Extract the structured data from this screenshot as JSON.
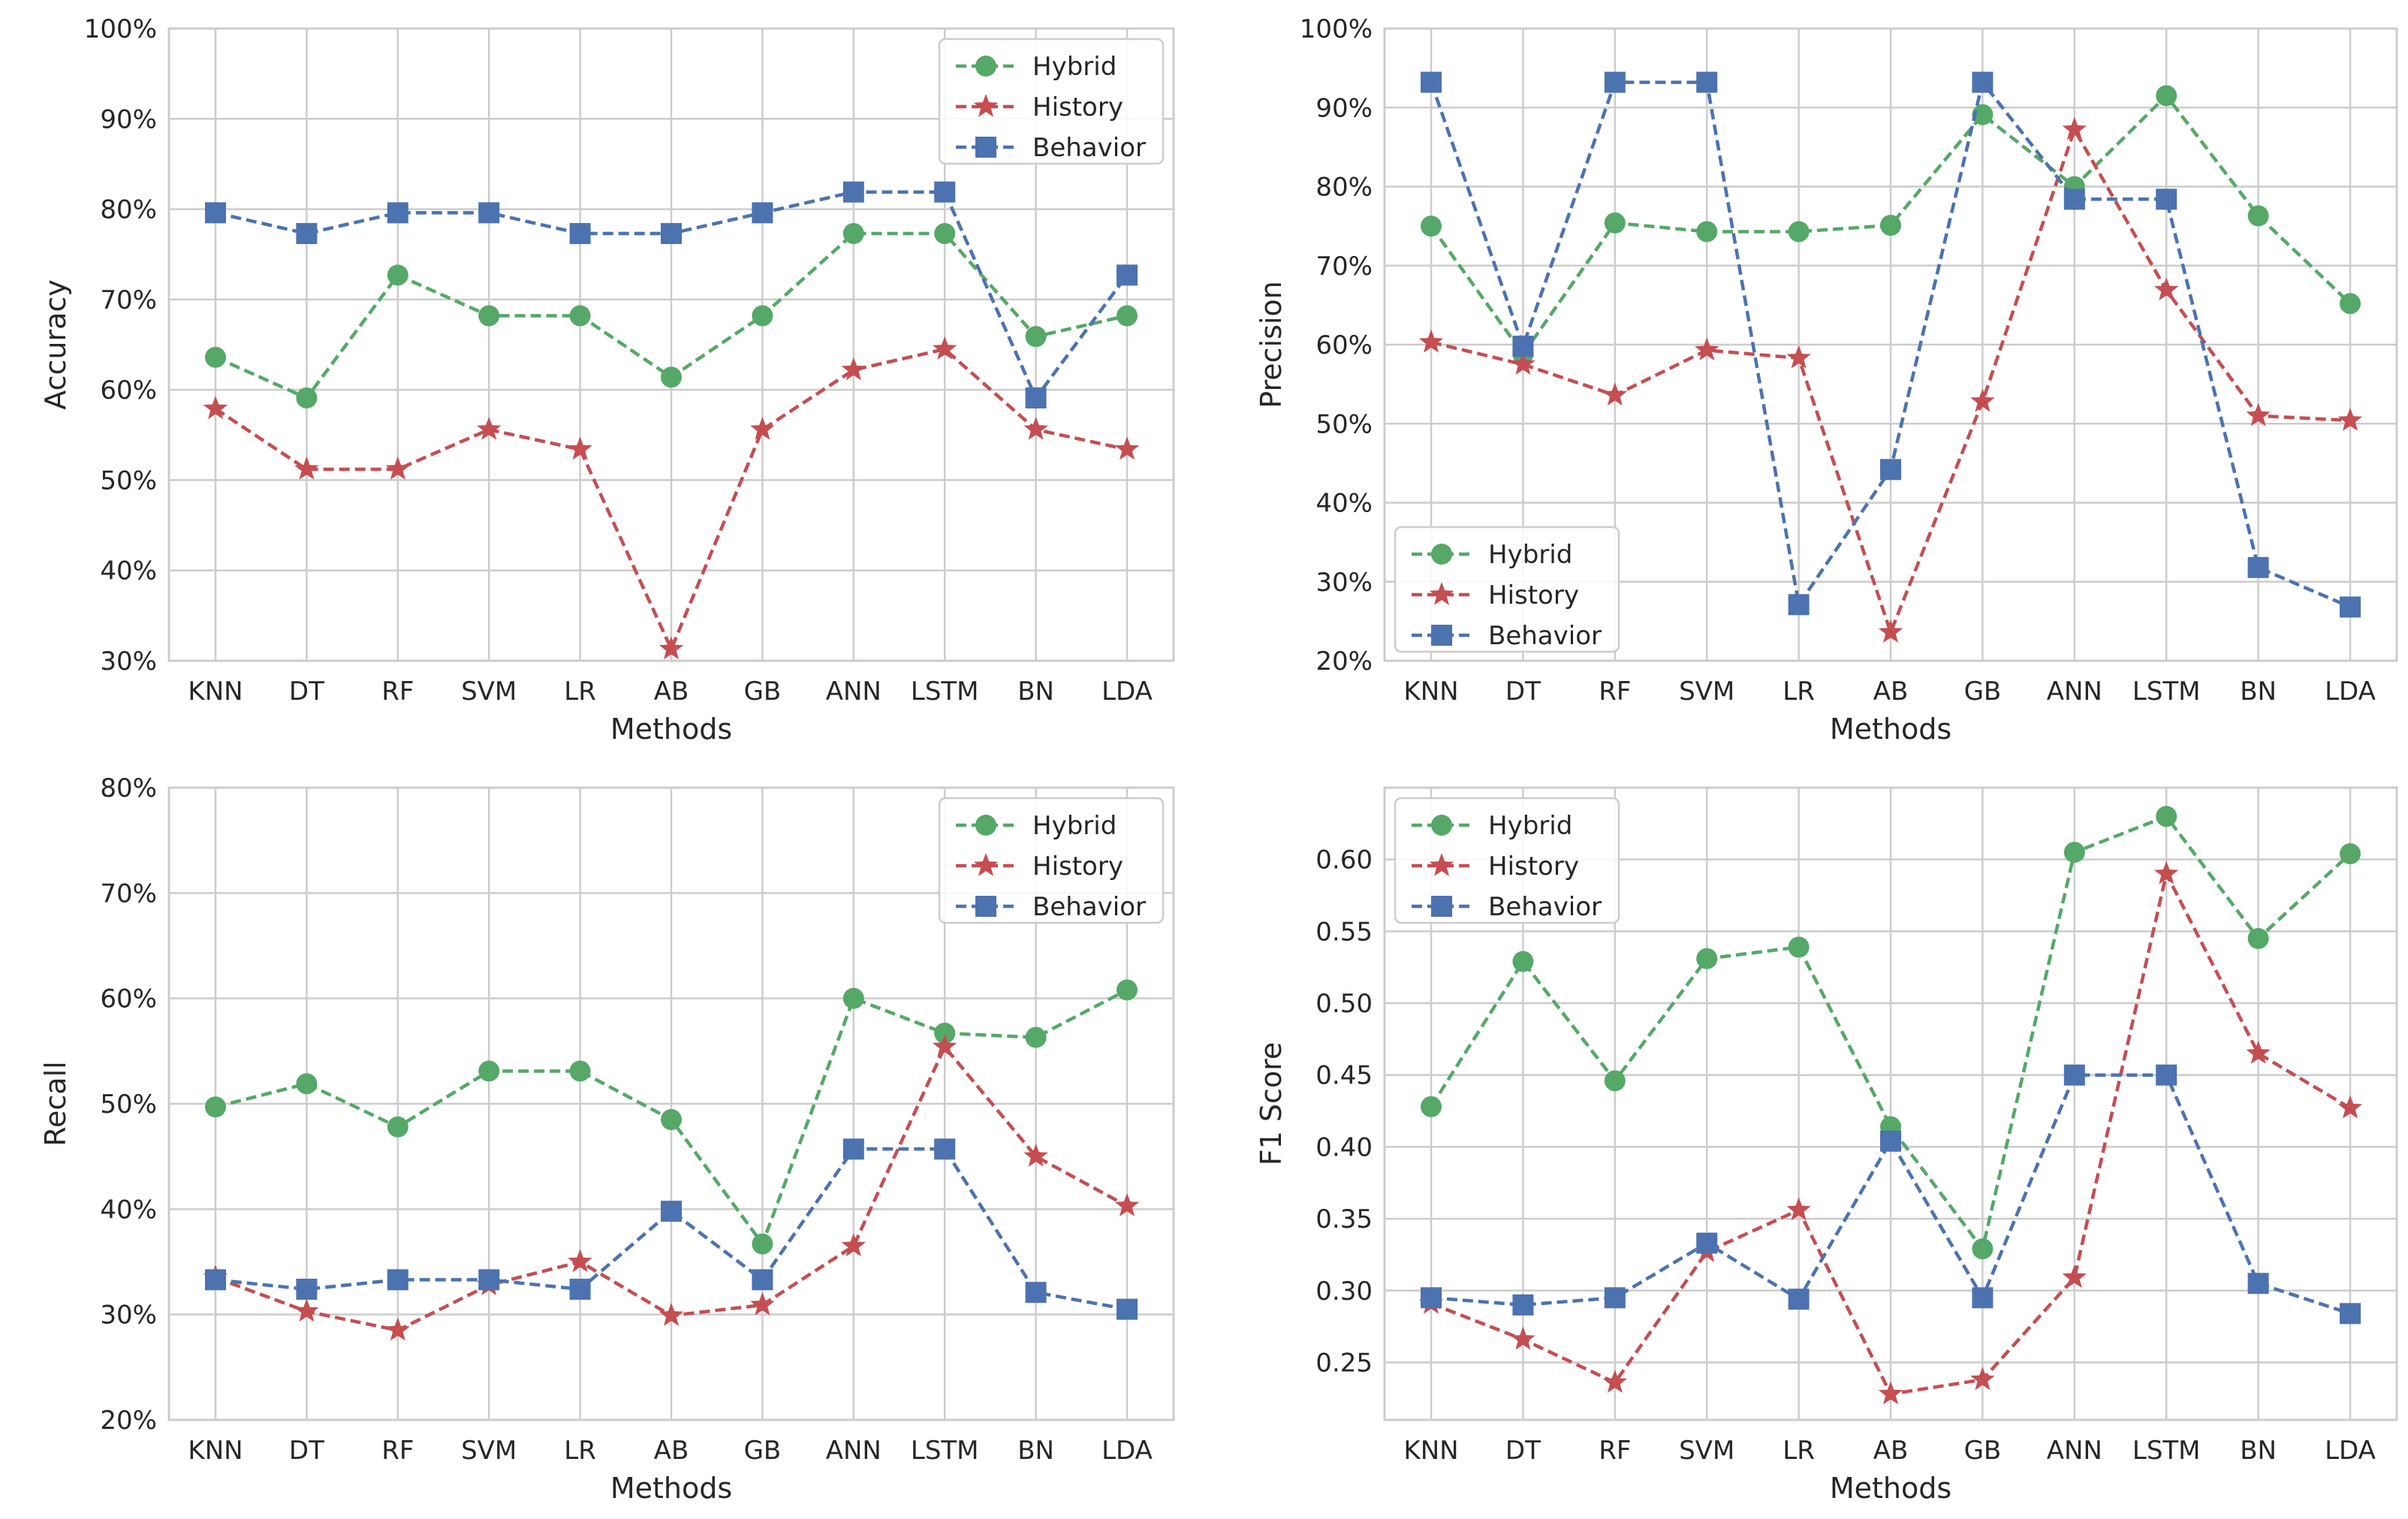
{
  "colors": {
    "Hybrid": "#55a868",
    "History": "#c44e52",
    "Behavior": "#4c72b0",
    "grid": "#cccccc",
    "frame": "#cccccc"
  },
  "chart_data": [
    {
      "type": "line",
      "title": "",
      "xlabel": "Methods",
      "ylabel": "Accuracy",
      "categories": [
        "KNN",
        "DT",
        "RF",
        "SVM",
        "LR",
        "AB",
        "GB",
        "ANN",
        "LSTM",
        "BN",
        "LDA"
      ],
      "ylim": [
        30,
        100
      ],
      "yticks": [
        30,
        40,
        50,
        60,
        70,
        80,
        90,
        100
      ],
      "ytick_labels": [
        "30%",
        "40%",
        "50%",
        "60%",
        "70%",
        "80%",
        "90%",
        "100%"
      ],
      "grid": true,
      "legend": "top-right",
      "series": [
        {
          "name": "Hybrid",
          "marker": "circle",
          "values": [
            63.6,
            59.1,
            72.7,
            68.2,
            68.2,
            61.4,
            68.2,
            77.3,
            77.3,
            65.9,
            68.2
          ]
        },
        {
          "name": "History",
          "marker": "star",
          "values": [
            57.9,
            51.2,
            51.2,
            55.6,
            53.4,
            31.3,
            55.6,
            62.2,
            64.5,
            55.6,
            53.4
          ]
        },
        {
          "name": "Behavior",
          "marker": "square",
          "values": [
            79.6,
            77.3,
            79.6,
            79.6,
            77.3,
            77.3,
            79.6,
            81.9,
            81.9,
            59.1,
            72.7
          ]
        }
      ]
    },
    {
      "type": "line",
      "title": "",
      "xlabel": "Methods",
      "ylabel": "Precision",
      "categories": [
        "KNN",
        "DT",
        "RF",
        "SVM",
        "LR",
        "AB",
        "GB",
        "ANN",
        "LSTM",
        "BN",
        "LDA"
      ],
      "ylim": [
        20,
        100
      ],
      "yticks": [
        20,
        30,
        40,
        50,
        60,
        70,
        80,
        90,
        100
      ],
      "ytick_labels": [
        "20%",
        "30%",
        "40%",
        "50%",
        "60%",
        "70%",
        "80%",
        "90%",
        "100%"
      ],
      "grid": true,
      "legend": "bottom-left",
      "series": [
        {
          "name": "Hybrid",
          "marker": "circle",
          "values": [
            75.0,
            58.8,
            75.4,
            74.3,
            74.3,
            75.1,
            89.1,
            80.0,
            91.5,
            76.3,
            65.2
          ]
        },
        {
          "name": "History",
          "marker": "star",
          "values": [
            60.3,
            57.5,
            53.6,
            59.3,
            58.3,
            23.6,
            52.8,
            87.2,
            66.9,
            51.0,
            50.4
          ]
        },
        {
          "name": "Behavior",
          "marker": "square",
          "values": [
            93.2,
            59.8,
            93.2,
            93.2,
            27.1,
            44.2,
            93.2,
            78.4,
            78.4,
            31.8,
            26.8
          ]
        }
      ]
    },
    {
      "type": "line",
      "title": "",
      "xlabel": "Methods",
      "ylabel": "Recall",
      "categories": [
        "KNN",
        "DT",
        "RF",
        "SVM",
        "LR",
        "AB",
        "GB",
        "ANN",
        "LSTM",
        "BN",
        "LDA"
      ],
      "ylim": [
        20,
        80
      ],
      "yticks": [
        20,
        30,
        40,
        50,
        60,
        70,
        80
      ],
      "ytick_labels": [
        "20%",
        "30%",
        "40%",
        "50%",
        "60%",
        "70%",
        "80%"
      ],
      "grid": true,
      "legend": "top-right",
      "series": [
        {
          "name": "Hybrid",
          "marker": "circle",
          "values": [
            49.7,
            51.9,
            47.8,
            53.1,
            53.1,
            48.5,
            36.7,
            60.0,
            56.7,
            56.3,
            60.8
          ]
        },
        {
          "name": "History",
          "marker": "star",
          "values": [
            33.5,
            30.3,
            28.5,
            32.8,
            35.0,
            29.9,
            30.9,
            36.5,
            55.4,
            45.0,
            40.3
          ]
        },
        {
          "name": "Behavior",
          "marker": "square",
          "values": [
            33.3,
            32.4,
            33.3,
            33.3,
            32.4,
            39.8,
            33.3,
            45.7,
            45.7,
            32.1,
            30.5
          ]
        }
      ]
    },
    {
      "type": "line",
      "title": "",
      "xlabel": "Methods",
      "ylabel": "F1 Score",
      "categories": [
        "KNN",
        "DT",
        "RF",
        "SVM",
        "LR",
        "AB",
        "GB",
        "ANN",
        "LSTM",
        "BN",
        "LDA"
      ],
      "ylim": [
        0.21,
        0.65
      ],
      "yticks": [
        0.25,
        0.3,
        0.35,
        0.4,
        0.45,
        0.5,
        0.55,
        0.6
      ],
      "ytick_labels": [
        "0.25",
        "0.30",
        "0.35",
        "0.40",
        "0.45",
        "0.50",
        "0.55",
        "0.60"
      ],
      "grid": true,
      "legend": "top-left",
      "series": [
        {
          "name": "Hybrid",
          "marker": "circle",
          "values": [
            0.428,
            0.529,
            0.446,
            0.531,
            0.539,
            0.414,
            0.329,
            0.605,
            0.63,
            0.545,
            0.604
          ]
        },
        {
          "name": "History",
          "marker": "star",
          "values": [
            0.291,
            0.266,
            0.236,
            0.327,
            0.356,
            0.228,
            0.238,
            0.309,
            0.59,
            0.465,
            0.427
          ]
        },
        {
          "name": "Behavior",
          "marker": "square",
          "values": [
            0.295,
            0.29,
            0.295,
            0.333,
            0.294,
            0.404,
            0.295,
            0.45,
            0.45,
            0.305,
            0.284
          ]
        }
      ]
    }
  ]
}
